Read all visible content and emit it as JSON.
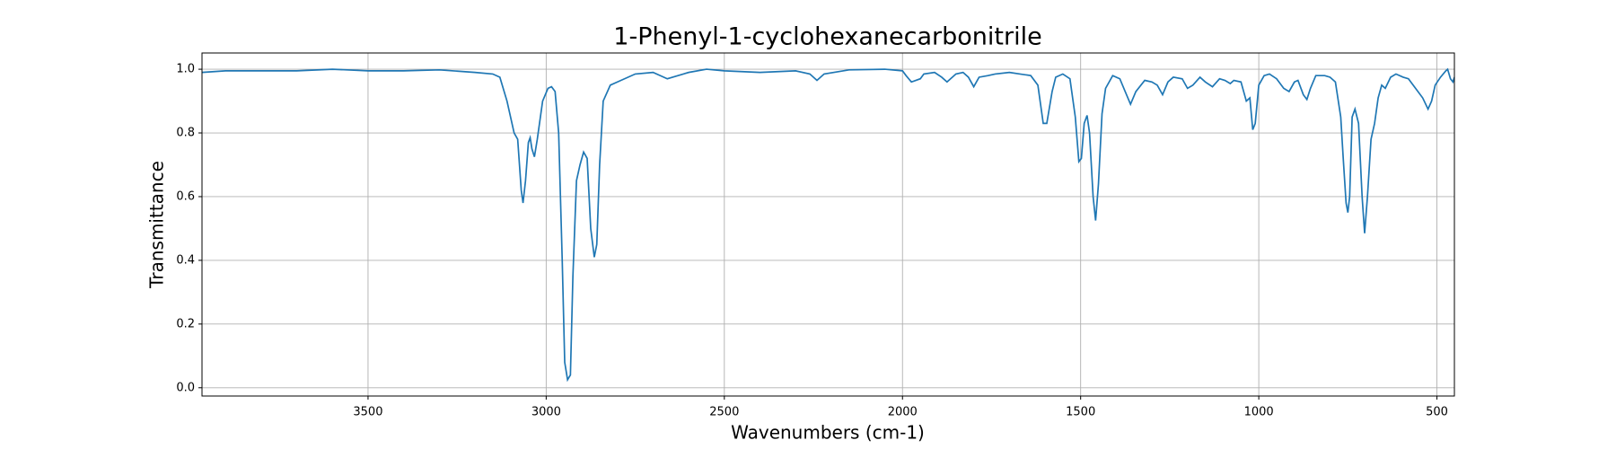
{
  "chart_data": {
    "type": "line",
    "title": "1-Phenyl-1-cyclohexanecarbonitrile",
    "xlabel": "Wavenumbers (cm-1)",
    "ylabel": "Transmittance",
    "color": "#1f77b4",
    "grid": true,
    "xlim": [
      3966,
      451
    ],
    "ylim": [
      -0.026,
      1.051
    ],
    "xticks": [
      3500,
      3000,
      2500,
      2000,
      1500,
      1000,
      500
    ],
    "yticks": [
      {
        "value": 0,
        "label": "0.0"
      },
      0.2,
      0.4,
      0.6,
      0.8,
      {
        "value": 1,
        "label": "1.0"
      }
    ],
    "x": [
      3966,
      3900,
      3800,
      3700,
      3600,
      3500,
      3400,
      3300,
      3200,
      3150,
      3130,
      3110,
      3090,
      3080,
      3070,
      3065,
      3058,
      3050,
      3045,
      3040,
      3033,
      3025,
      3010,
      2995,
      2985,
      2975,
      2965,
      2955,
      2948,
      2940,
      2932,
      2925,
      2915,
      2905,
      2895,
      2885,
      2875,
      2865,
      2858,
      2850,
      2840,
      2820,
      2800,
      2750,
      2700,
      2660,
      2600,
      2550,
      2500,
      2400,
      2300,
      2260,
      2240,
      2220,
      2150,
      2050,
      2000,
      1990,
      1975,
      1950,
      1940,
      1910,
      1890,
      1875,
      1850,
      1830,
      1815,
      1800,
      1785,
      1760,
      1740,
      1700,
      1670,
      1640,
      1620,
      1605,
      1595,
      1580,
      1570,
      1550,
      1530,
      1515,
      1505,
      1498,
      1490,
      1482,
      1475,
      1465,
      1458,
      1450,
      1440,
      1430,
      1410,
      1390,
      1375,
      1360,
      1345,
      1320,
      1300,
      1285,
      1270,
      1255,
      1240,
      1215,
      1200,
      1185,
      1165,
      1150,
      1130,
      1110,
      1095,
      1080,
      1070,
      1050,
      1035,
      1025,
      1017,
      1010,
      1000,
      985,
      970,
      950,
      930,
      915,
      900,
      890,
      875,
      865,
      855,
      840,
      815,
      800,
      785,
      770,
      763,
      755,
      750,
      745,
      738,
      730,
      720,
      710,
      703,
      695,
      685,
      675,
      665,
      655,
      645,
      630,
      615,
      595,
      580,
      560,
      540,
      525,
      515,
      505,
      490,
      475,
      470,
      462,
      455,
      451
    ],
    "values": [
      0.99,
      0.995,
      0.995,
      0.995,
      1.0,
      0.995,
      0.995,
      0.998,
      0.99,
      0.985,
      0.975,
      0.9,
      0.8,
      0.78,
      0.62,
      0.58,
      0.65,
      0.77,
      0.785,
      0.75,
      0.725,
      0.78,
      0.9,
      0.94,
      0.945,
      0.93,
      0.8,
      0.4,
      0.08,
      0.025,
      0.04,
      0.35,
      0.65,
      0.7,
      0.74,
      0.72,
      0.5,
      0.41,
      0.45,
      0.7,
      0.9,
      0.95,
      0.96,
      0.985,
      0.99,
      0.97,
      0.99,
      1.0,
      0.995,
      0.99,
      0.995,
      0.985,
      0.965,
      0.985,
      0.998,
      1.0,
      0.995,
      0.98,
      0.96,
      0.97,
      0.985,
      0.99,
      0.975,
      0.96,
      0.985,
      0.99,
      0.975,
      0.945,
      0.975,
      0.98,
      0.985,
      0.99,
      0.985,
      0.98,
      0.95,
      0.83,
      0.83,
      0.93,
      0.975,
      0.985,
      0.97,
      0.85,
      0.71,
      0.72,
      0.83,
      0.855,
      0.8,
      0.6,
      0.525,
      0.64,
      0.86,
      0.94,
      0.98,
      0.97,
      0.93,
      0.89,
      0.93,
      0.965,
      0.96,
      0.95,
      0.92,
      0.96,
      0.975,
      0.97,
      0.94,
      0.95,
      0.975,
      0.96,
      0.945,
      0.97,
      0.965,
      0.955,
      0.965,
      0.96,
      0.9,
      0.91,
      0.81,
      0.83,
      0.95,
      0.98,
      0.985,
      0.97,
      0.94,
      0.93,
      0.96,
      0.965,
      0.92,
      0.905,
      0.94,
      0.98,
      0.98,
      0.975,
      0.96,
      0.85,
      0.72,
      0.58,
      0.55,
      0.6,
      0.85,
      0.875,
      0.83,
      0.6,
      0.485,
      0.6,
      0.78,
      0.83,
      0.91,
      0.95,
      0.94,
      0.975,
      0.985,
      0.975,
      0.97,
      0.94,
      0.91,
      0.875,
      0.9,
      0.95,
      0.975,
      0.995,
      1.0,
      0.97,
      0.96,
      0.975
    ]
  }
}
